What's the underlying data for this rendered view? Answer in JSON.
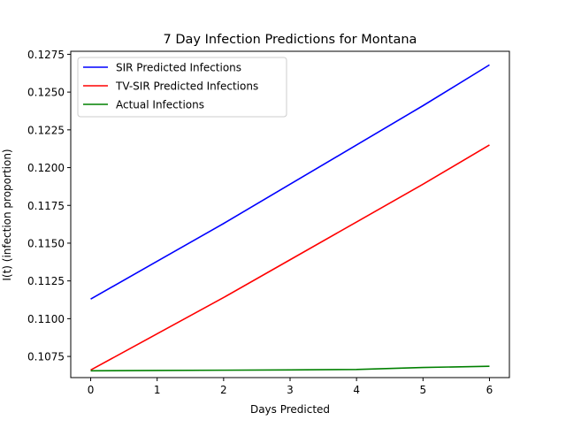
{
  "chart_data": {
    "type": "line",
    "title": "7 Day Infection Predictions for Montana",
    "xlabel": "Days Predicted",
    "ylabel": "I(t) (infection proportion)",
    "x": [
      0,
      1,
      2,
      3,
      4,
      5,
      6
    ],
    "xlim": [
      -0.3,
      6.3
    ],
    "ylim": [
      0.1061,
      0.1277
    ],
    "xticks": [
      0,
      1,
      2,
      3,
      4,
      5,
      6
    ],
    "yticks": [
      0.1075,
      0.11,
      0.1125,
      0.115,
      0.1175,
      0.12,
      0.1225,
      0.125,
      0.1275
    ],
    "ytick_labels": [
      "0.1075",
      "0.1100",
      "0.1125",
      "0.1150",
      "0.1175",
      "0.1200",
      "0.1225",
      "0.1250",
      "0.1275"
    ],
    "grid": false,
    "legend_position": "top-left",
    "series": [
      {
        "name": "SIR Predicted Infections",
        "color": "#0000ff",
        "values": [
          0.1113,
          0.1138,
          0.1163,
          0.1189,
          0.1215,
          0.1241,
          0.1268
        ]
      },
      {
        "name": "TV-SIR Predicted Infections",
        "color": "#ff0000",
        "values": [
          0.1066,
          0.109,
          0.1114,
          0.1139,
          0.1164,
          0.1189,
          0.1215
        ]
      },
      {
        "name": "Actual Infections",
        "color": "#008000",
        "values": [
          0.10655,
          0.10657,
          0.10659,
          0.10661,
          0.10664,
          0.10677,
          0.10685
        ]
      }
    ]
  }
}
